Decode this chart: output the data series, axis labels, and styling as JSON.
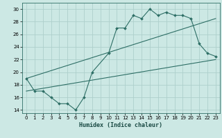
{
  "title": "",
  "xlabel": "Humidex (Indice chaleur)",
  "xlim": [
    -0.5,
    23.5
  ],
  "ylim": [
    13.5,
    31
  ],
  "xticks": [
    0,
    1,
    2,
    3,
    4,
    5,
    6,
    7,
    8,
    9,
    10,
    11,
    12,
    13,
    14,
    15,
    16,
    17,
    18,
    19,
    20,
    21,
    22,
    23
  ],
  "yticks": [
    14,
    16,
    18,
    20,
    22,
    24,
    26,
    28,
    30
  ],
  "background_color": "#cce8e4",
  "line_color": "#2d6e65",
  "grid_color": "#aecfcb",
  "line1_x": [
    0,
    1,
    2,
    3,
    4,
    5,
    6,
    7,
    8,
    10,
    11,
    12,
    13,
    14,
    15,
    16,
    17,
    18,
    19,
    20,
    21,
    22,
    23
  ],
  "line1_y": [
    19,
    17,
    17,
    16,
    15,
    15,
    14,
    16,
    20,
    23,
    27,
    27,
    29,
    28.5,
    30,
    29,
    29.5,
    29,
    29,
    28.5,
    24.5,
    23,
    22.5
  ],
  "line2_x": [
    0,
    23
  ],
  "line2_y": [
    17,
    22
  ],
  "line3_x": [
    0,
    23
  ],
  "line3_y": [
    19,
    28.5
  ]
}
